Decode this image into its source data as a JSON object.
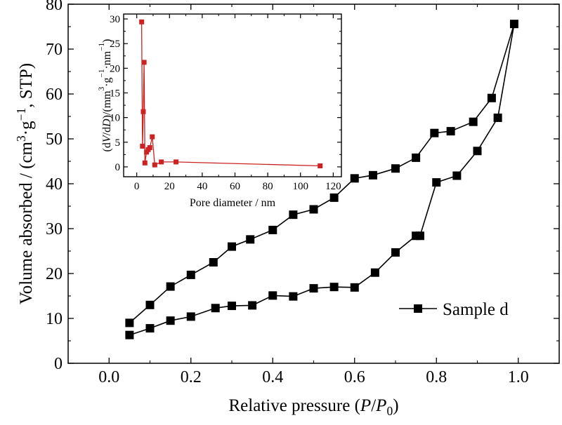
{
  "chart_data": [
    {
      "type": "line",
      "xlabel_parts": [
        "Relative pressure (",
        "P",
        "/",
        "P",
        "0",
        ")"
      ],
      "ylabel_parts": [
        "Volume absorbed / (cm",
        "3",
        "·g",
        "−1",
        ", STP)"
      ],
      "xlim": [
        -0.1,
        1.1
      ],
      "ylim": [
        0,
        80
      ],
      "xticks": [
        "0.0",
        "0.2",
        "0.4",
        "0.6",
        "0.8",
        "1.0"
      ],
      "yticks": [
        "0",
        "10",
        "20",
        "30",
        "40",
        "50",
        "60",
        "70",
        "80"
      ],
      "legend_placement": "lower-right",
      "series": [
        {
          "name": "Sample d",
          "color": "#000000",
          "marker": "square",
          "x": [
            0.05,
            0.1,
            0.15,
            0.2,
            0.26,
            0.3,
            0.35,
            0.4,
            0.45,
            0.5,
            0.55,
            0.6,
            0.65,
            0.7,
            0.75,
            0.76,
            0.8,
            0.85,
            0.9,
            0.95,
            0.99,
            0.935,
            0.89,
            0.835,
            0.795,
            0.75,
            0.7,
            0.645,
            0.6,
            0.55,
            0.5,
            0.45,
            0.4,
            0.345,
            0.3,
            0.255,
            0.2,
            0.15,
            0.1,
            0.05
          ],
          "y": [
            6.3,
            7.8,
            9.5,
            10.4,
            12.3,
            12.8,
            12.9,
            15.1,
            14.9,
            16.7,
            17.0,
            16.9,
            20.2,
            24.7,
            28.4,
            28.4,
            40.3,
            41.8,
            47.3,
            54.7,
            75.6,
            59.1,
            53.8,
            51.7,
            51.3,
            45.8,
            43.4,
            41.9,
            41.2,
            36.9,
            34.3,
            33.1,
            29.7,
            27.6,
            26.0,
            22.5,
            19.7,
            17.1,
            13.0,
            9.0
          ]
        }
      ]
    },
    {
      "type": "line",
      "xlabel": "Pore diameter / nm",
      "ylabel_parts": [
        "(d",
        "V",
        "/d",
        "D",
        ")/(mm",
        "3",
        "·g",
        "−1",
        "·nm",
        "−1",
        ")"
      ],
      "xlim": [
        -8,
        125
      ],
      "ylim": [
        -2,
        31
      ],
      "xticks": [
        "0",
        "20",
        "40",
        "60",
        "80",
        "100",
        "120"
      ],
      "yticks": [
        "0",
        "5",
        "10",
        "15",
        "20",
        "25",
        "30"
      ],
      "series": [
        {
          "color": "#cc2222",
          "marker": "square",
          "x": [
            3.0,
            3.5,
            4.0,
            4.5,
            5.0,
            6.0,
            7.0,
            8.0,
            9.5,
            11.0,
            15.0,
            24.0,
            112.0
          ],
          "y": [
            29.4,
            4.2,
            11.2,
            21.2,
            0.8,
            3.0,
            3.5,
            3.9,
            6.1,
            0.4,
            1.0,
            1.0,
            0.2
          ]
        }
      ]
    }
  ]
}
